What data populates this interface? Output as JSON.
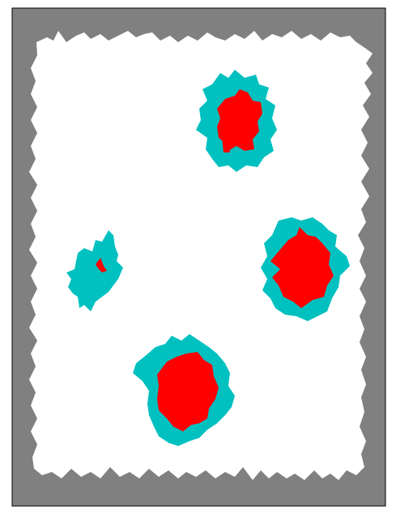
{
  "colors": {
    "background": "#808080",
    "region": "#ffffff",
    "halo": "#00c0c0",
    "core": "#ff0000",
    "frame": "#000000"
  },
  "blobs": [
    {
      "name": "blob-top"
    },
    {
      "name": "blob-right"
    },
    {
      "name": "blob-left"
    },
    {
      "name": "blob-bottom"
    }
  ]
}
